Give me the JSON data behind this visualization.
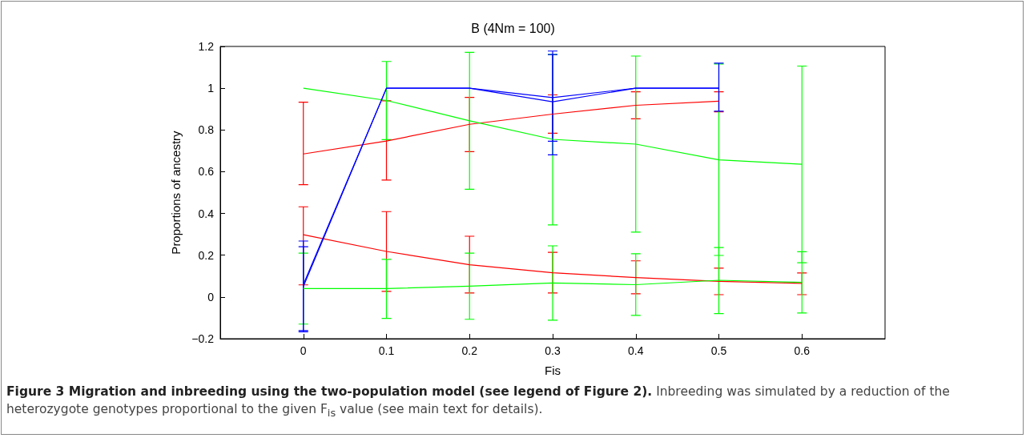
{
  "chart_data": {
    "type": "line",
    "title": "B (4Nm = 100)",
    "xlabel": "Fis",
    "ylabel": "Proportions of ancestry",
    "x": [
      0,
      0.1,
      0.2,
      0.3,
      0.4,
      0.5,
      0.6
    ],
    "xlim": [
      -0.1,
      0.7
    ],
    "xticks": [
      0,
      0.1,
      0.2,
      0.3,
      0.4,
      0.5,
      0.6
    ],
    "ylim": [
      -0.2,
      1.2
    ],
    "yticks": [
      -0.2,
      0,
      0.2,
      0.4,
      0.6,
      0.8,
      1,
      1.2
    ],
    "grid": false,
    "legend": false,
    "marker": "none",
    "line_style": "solid",
    "series": [
      {
        "color": "#ff0000",
        "values": [
          0.685,
          0.747,
          0.827,
          0.876,
          0.918,
          0.938,
          null
        ],
        "errors": [
          [
            0.538,
            0.933
          ],
          [
            0.56,
            0.94
          ],
          [
            0.696,
            0.956
          ],
          [
            0.784,
            0.968
          ],
          [
            0.853,
            0.983
          ],
          [
            0.887,
            0.983
          ],
          null
        ]
      },
      {
        "color": "#ff0000",
        "values": [
          0.298,
          0.218,
          0.154,
          0.116,
          0.093,
          0.075,
          0.065
        ],
        "errors": [
          [
            0.058,
            0.432
          ],
          [
            0.027,
            0.409
          ],
          [
            0.019,
            0.291
          ],
          [
            0.019,
            0.214
          ],
          [
            0.015,
            0.173
          ],
          [
            0.011,
            0.138
          ],
          [
            0.011,
            0.115
          ]
        ]
      },
      {
        "color": "#00ff00",
        "values": [
          1.0,
          0.941,
          0.844,
          0.755,
          0.732,
          0.657,
          0.636
        ],
        "errors": [
          null,
          [
            0.754,
            1.128
          ],
          [
            0.516,
            1.172
          ],
          [
            0.345,
            1.161
          ],
          [
            0.311,
            1.154
          ],
          [
            0.199,
            1.116
          ],
          [
            0.164,
            1.106
          ]
        ]
      },
      {
        "color": "#00ff00",
        "values": [
          0.04,
          0.04,
          0.052,
          0.067,
          0.059,
          0.08,
          0.07
        ],
        "errors": [
          [
            -0.13,
            0.21
          ],
          [
            -0.103,
            0.18
          ],
          [
            -0.107,
            0.21
          ],
          [
            -0.111,
            0.245
          ],
          [
            -0.088,
            0.207
          ],
          [
            -0.08,
            0.237
          ],
          [
            -0.077,
            0.217
          ]
        ]
      },
      {
        "color": "#0000ff",
        "values": [
          0.06,
          1.0,
          1.0,
          0.955,
          1.0,
          1.0,
          null
        ],
        "errors": [
          [
            -0.161,
            0.268
          ],
          null,
          null,
          [
            0.746,
            1.178
          ],
          null,
          [
            0.89,
            1.12
          ],
          null
        ]
      },
      {
        "color": "#0000ff",
        "values": [
          0.05,
          1.0,
          1.0,
          0.935,
          1.0,
          1.0,
          null
        ],
        "errors": [
          [
            -0.167,
            0.241
          ],
          null,
          null,
          [
            0.681,
            1.161
          ],
          null,
          null,
          null
        ]
      }
    ],
    "annotations": [
      "Figure 3 Migration and inbreeding using the two-population model (see legend of Figure 2).",
      "Inbreeding was simulated by a reduction of the heterozygote genotypes proportional to the given F$_{is}$ value (see main text for details)."
    ]
  }
}
